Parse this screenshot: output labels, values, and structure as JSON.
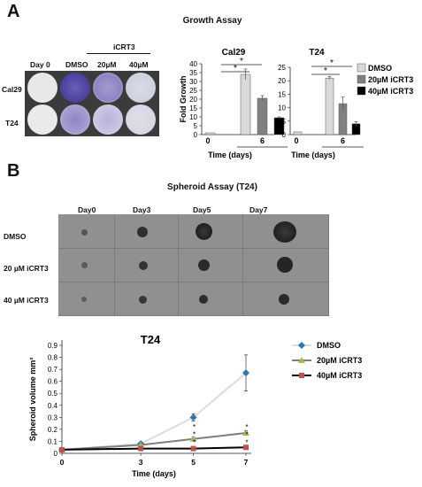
{
  "panel_a": {
    "letter": "A",
    "title": "Growth Assay",
    "treatment_header": "iCRT3",
    "col_labels": [
      "Day 0",
      "DMSO",
      "20µM",
      "40µM"
    ],
    "row_labels": [
      "Cal29",
      "T24"
    ]
  },
  "panel_b": {
    "letter": "B",
    "title": "Spheroid Assay (T24)",
    "col_labels": [
      "Day0",
      "Day3",
      "Day5",
      "Day7"
    ],
    "row_labels": [
      "DMSO",
      "20 µM iCRT3",
      "40 µM iCRT3"
    ]
  },
  "chart_data": [
    {
      "type": "bar",
      "title": "Cal29",
      "ylabel": "Fold Growth",
      "xlabel": "Time (days)",
      "ylim": [
        0,
        40
      ],
      "yticks": [
        0,
        5,
        10,
        15,
        20,
        25,
        30,
        35,
        40
      ],
      "categories": [
        "0",
        "6"
      ],
      "series": [
        {
          "name": "DMSO",
          "values": [
            1,
            34
          ],
          "errors": [
            0,
            3
          ],
          "color": "#d9d9d9"
        },
        {
          "name": "20µM iCRT3",
          "values": [
            null,
            20.5
          ],
          "errors": [
            null,
            1.5
          ],
          "color": "#808080"
        },
        {
          "name": "40µM iCRT3",
          "values": [
            null,
            9.5
          ],
          "errors": [
            null,
            0.5
          ],
          "color": "#000000"
        }
      ],
      "significance": [
        "*",
        "*"
      ]
    },
    {
      "type": "bar",
      "title": "T24",
      "xlabel": "Time (days)",
      "ylim": [
        0,
        25
      ],
      "yticks": [
        0,
        5,
        10,
        15,
        20,
        25
      ],
      "categories": [
        "0",
        "6"
      ],
      "series": [
        {
          "name": "DMSO",
          "values": [
            1,
            21
          ],
          "errors": [
            0,
            0.5
          ],
          "color": "#d9d9d9"
        },
        {
          "name": "20µM iCRT3",
          "values": [
            null,
            11.5
          ],
          "errors": [
            null,
            2.5
          ],
          "color": "#808080"
        },
        {
          "name": "40µM iCRT3",
          "values": [
            null,
            4
          ],
          "errors": [
            null,
            0.8
          ],
          "color": "#000000"
        }
      ],
      "significance": [
        "*",
        "*"
      ],
      "legend": [
        "DMSO",
        "20µM iCRT3",
        "40µM iCRT3"
      ]
    },
    {
      "type": "line",
      "title": "T24",
      "xlabel": "Time (days)",
      "ylabel": "Spheroid volume mm³",
      "xlim": [
        0,
        7
      ],
      "xticks": [
        0,
        3,
        5,
        7
      ],
      "ylim": [
        0,
        0.9
      ],
      "yticks": [
        0,
        0.1,
        0.2,
        0.3,
        0.4,
        0.5,
        0.6,
        0.7,
        0.8,
        0.9
      ],
      "x": [
        0,
        3,
        5,
        7
      ],
      "series": [
        {
          "name": "DMSO",
          "values": [
            0.03,
            0.08,
            0.3,
            0.67
          ],
          "errors": [
            0.005,
            0.01,
            0.03,
            0.15
          ],
          "color": "#dcdcdc",
          "marker_color": "#2e75b6",
          "marker": "diamond"
        },
        {
          "name": "20µM iCRT3",
          "values": [
            0.03,
            0.07,
            0.12,
            0.17
          ],
          "errors": [
            0.005,
            0.01,
            0.015,
            0.02
          ],
          "color": "#7f7f7f",
          "marker_color": "#9bbb59",
          "marker": "triangle"
        },
        {
          "name": "40µM iCRT3",
          "values": [
            0.03,
            0.04,
            0.04,
            0.05
          ],
          "errors": [
            0.005,
            0.005,
            0.005,
            0.005
          ],
          "color": "#000000",
          "marker_color": "#c0504d",
          "marker": "square"
        }
      ],
      "significance_marks": [
        {
          "x": 5,
          "label": "*"
        },
        {
          "x": 7,
          "label": "*"
        }
      ],
      "legend": [
        "DMSO",
        "20µM iCRT3",
        "40µM iCRT3"
      ]
    }
  ]
}
